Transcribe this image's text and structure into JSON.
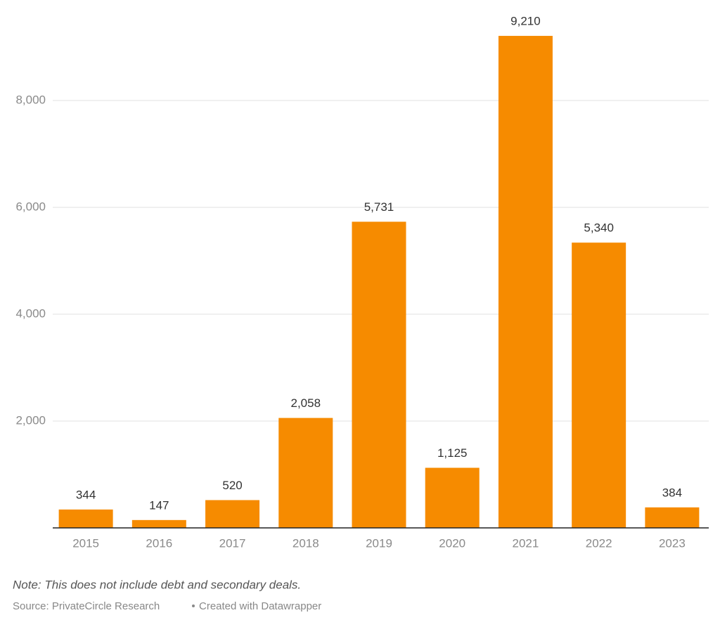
{
  "chart_data": {
    "type": "bar",
    "categories": [
      "2015",
      "2016",
      "2017",
      "2018",
      "2019",
      "2020",
      "2021",
      "2022",
      "2023"
    ],
    "values": [
      344,
      147,
      520,
      2058,
      5731,
      1125,
      9210,
      5340,
      384
    ],
    "value_labels": [
      "344",
      "147",
      "520",
      "2,058",
      "5,731",
      "1,125",
      "9,210",
      "5,340",
      "384"
    ],
    "color": "#f68b00",
    "ylim": [
      0,
      9600
    ],
    "yticks": [
      {
        "value": 2000,
        "label": "2,000"
      },
      {
        "value": 4000,
        "label": "4,000"
      },
      {
        "value": 6000,
        "label": "6,000"
      },
      {
        "value": 8000,
        "label": "8,000"
      }
    ],
    "grid": true,
    "note": "Note: This does not include debt and secondary deals.",
    "source": "Source: PrivateCircle Research",
    "credit": "Created with Datawrapper"
  }
}
